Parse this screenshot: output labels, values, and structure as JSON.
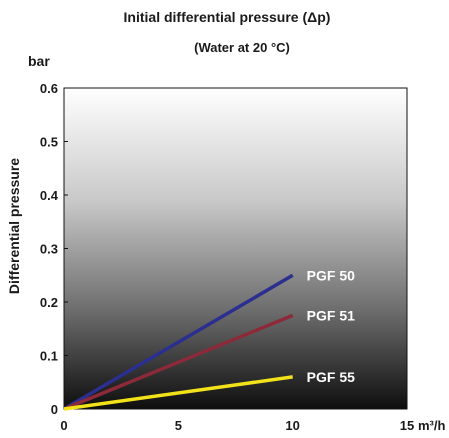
{
  "chart_data": {
    "type": "line",
    "title": "Initial differential pressure (Δp)",
    "subtitle": "(Water at 20 °C)",
    "y_unit": "bar",
    "x_unit": "m³/h",
    "ylabel": "Differential pressure",
    "xlabel": "",
    "xlim": [
      0,
      15
    ],
    "ylim": [
      0,
      0.6
    ],
    "x_ticks": [
      {
        "value": 0,
        "label": "0"
      },
      {
        "value": 5,
        "label": "5"
      },
      {
        "value": 10,
        "label": "10"
      },
      {
        "value": 15,
        "label": "15"
      }
    ],
    "y_ticks": [
      {
        "value": 0,
        "label": "0"
      },
      {
        "value": 0.1,
        "label": "0.1"
      },
      {
        "value": 0.2,
        "label": "0.2"
      },
      {
        "value": 0.3,
        "label": "0.3"
      },
      {
        "value": 0.4,
        "label": "0.4"
      },
      {
        "value": 0.5,
        "label": "0.5"
      },
      {
        "value": 0.6,
        "label": "0.6"
      }
    ],
    "grid": false,
    "background": "vertical gradient, white at top to near black at bottom",
    "series": [
      {
        "name": "PGF 50",
        "color": "#2b2f8f",
        "x": [
          0,
          10
        ],
        "y": [
          0,
          0.25
        ]
      },
      {
        "name": "PGF 51",
        "color": "#8c2a3a",
        "x": [
          0,
          10
        ],
        "y": [
          0,
          0.175
        ]
      },
      {
        "name": "PGF 55",
        "color": "#f2e21a",
        "x": [
          0,
          10
        ],
        "y": [
          0,
          0.06
        ]
      }
    ]
  }
}
